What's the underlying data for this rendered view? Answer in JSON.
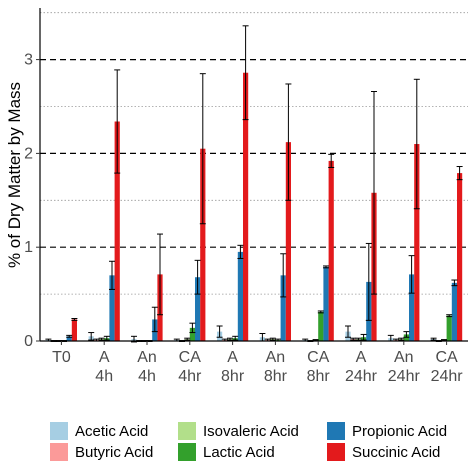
{
  "chart_data": {
    "type": "bar",
    "xlabel": "",
    "ylabel": "% of Dry Matter by Mass",
    "ylim": [
      0,
      3.55
    ],
    "yticks": [
      0,
      1,
      2,
      3
    ],
    "major_reference_lines": [
      1,
      2,
      3
    ],
    "minor_reference_lines": [
      0.5,
      1.5,
      2.5,
      3.5
    ],
    "legend_position": "bottom",
    "categories": [
      [
        "T0"
      ],
      [
        "A",
        "4h"
      ],
      [
        "An",
        "4h"
      ],
      [
        "CA",
        "4hr"
      ],
      [
        "A",
        "8hr"
      ],
      [
        "An",
        "8hr"
      ],
      [
        "CA",
        "8hr"
      ],
      [
        "A",
        "24hr"
      ],
      [
        "An",
        "24hr"
      ],
      [
        "CA",
        "24hr"
      ]
    ],
    "series": [
      {
        "name": "Acetic Acid",
        "color": "#a6cee3",
        "values": [
          0.01,
          0.05,
          0.02,
          0.01,
          0.1,
          0.04,
          0.01,
          0.1,
          0.03,
          0.02
        ],
        "errors": [
          0.01,
          0.04,
          0.03,
          0.01,
          0.06,
          0.04,
          0.01,
          0.06,
          0.03,
          0.01
        ]
      },
      {
        "name": "Butyric Acid",
        "color": "#fb9a99",
        "values": [
          0.0,
          0.01,
          0.0,
          0.0,
          0.01,
          0.01,
          0.0,
          0.02,
          0.01,
          0.0
        ],
        "errors": [
          0.005,
          0.01,
          0.005,
          0.005,
          0.01,
          0.01,
          0.005,
          0.01,
          0.01,
          0.005
        ]
      },
      {
        "name": "Isovaleric Acid",
        "color": "#b2df8a",
        "values": [
          0.0,
          0.02,
          0.0,
          0.02,
          0.02,
          0.02,
          0.01,
          0.02,
          0.02,
          0.01
        ],
        "errors": [
          0.005,
          0.01,
          0.005,
          0.01,
          0.01,
          0.01,
          0.005,
          0.01,
          0.01,
          0.005
        ]
      },
      {
        "name": "Lactic Acid",
        "color": "#33a02c",
        "values": [
          0.0,
          0.03,
          0.0,
          0.14,
          0.03,
          0.01,
          0.31,
          0.04,
          0.07,
          0.27
        ],
        "errors": [
          0.005,
          0.02,
          0.005,
          0.05,
          0.02,
          0.01,
          0.01,
          0.03,
          0.03,
          0.01
        ]
      },
      {
        "name": "Propionic Acid",
        "color": "#1f78b4",
        "values": [
          0.05,
          0.7,
          0.23,
          0.68,
          0.95,
          0.7,
          0.79,
          0.63,
          0.71,
          0.62
        ],
        "errors": [
          0.01,
          0.15,
          0.13,
          0.18,
          0.07,
          0.23,
          0.01,
          0.41,
          0.2,
          0.03
        ]
      },
      {
        "name": "Succinic Acid",
        "color": "#e31a1c",
        "values": [
          0.23,
          2.34,
          0.71,
          2.05,
          2.86,
          2.12,
          1.92,
          1.58,
          2.1,
          1.79
        ],
        "errors": [
          0.01,
          0.55,
          0.43,
          0.8,
          0.5,
          0.62,
          0.07,
          1.08,
          0.69,
          0.07
        ]
      }
    ]
  }
}
